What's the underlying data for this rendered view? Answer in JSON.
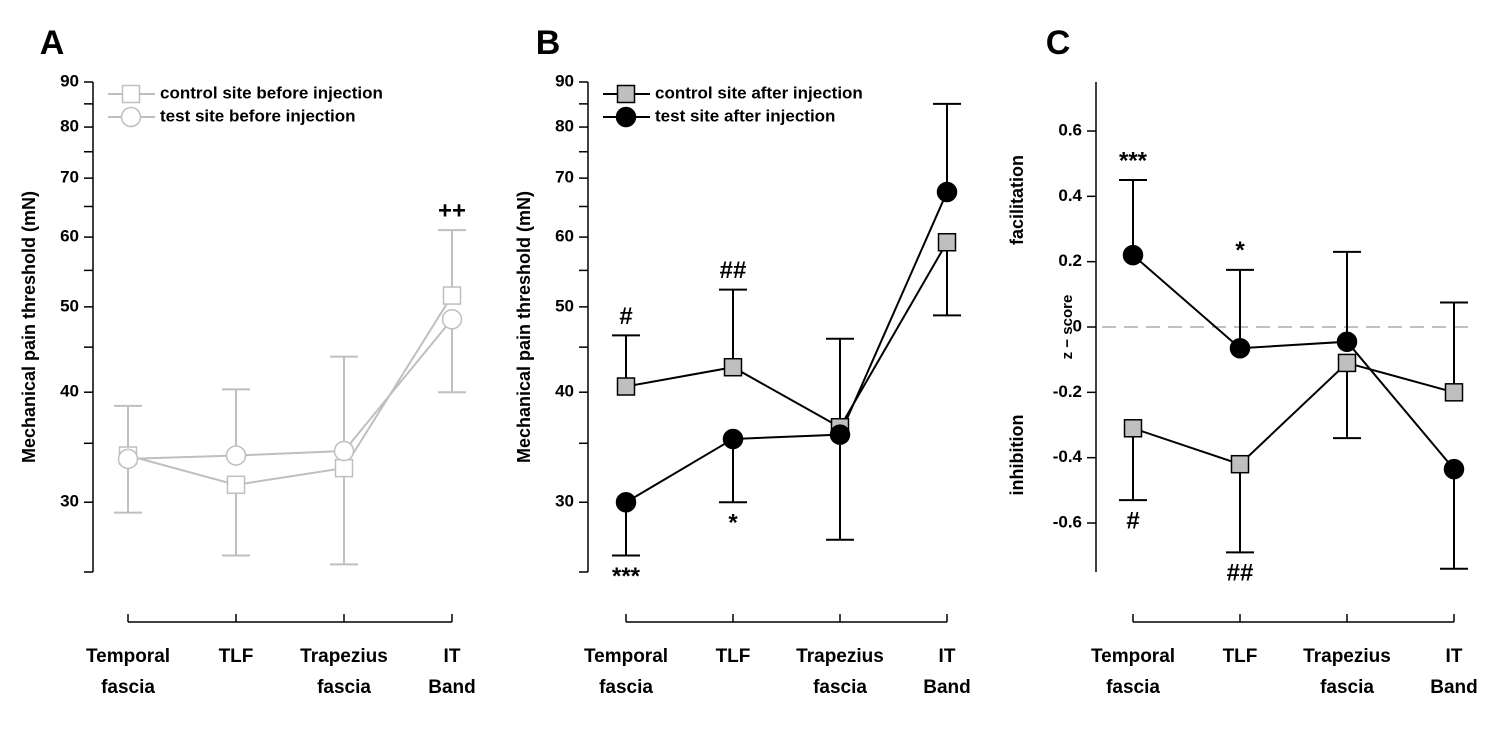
{
  "chart_data": [
    {
      "type": "line",
      "panel_label": "A",
      "ylabel": "Mechanical pain threshold (mN)",
      "log": true,
      "categories": [
        [
          "Temporal",
          "fascia"
        ],
        [
          "TLF"
        ],
        [
          "Trapezius",
          "fascia"
        ],
        [
          "IT",
          "Band"
        ]
      ],
      "series": [
        {
          "name": "control site before injection",
          "marker": "square",
          "color": "#bfbfbf",
          "fill": "#ffffff",
          "values": [
            33.9,
            31.4,
            32.8,
            51.5
          ]
        },
        {
          "name": "test site before injection",
          "marker": "circle",
          "color": "#bfbfbf",
          "fill": "#ffffff",
          "values": [
            33.6,
            33.9,
            34.3,
            48.4
          ]
        }
      ],
      "error_upper": [
        38.6,
        40.3,
        43.9,
        61.1
      ],
      "error_lower": [
        29.2,
        26.1,
        25.5,
        40.0
      ],
      "error_color": "#bfbfbf",
      "ylim": [
        25,
        90
      ],
      "yticks": [
        30,
        40,
        50,
        60,
        70,
        80,
        90
      ],
      "yminor": [
        25,
        35,
        45,
        55,
        65,
        75,
        85
      ],
      "annotations": [
        {
          "text": "++",
          "category": 3,
          "side": "above"
        }
      ]
    },
    {
      "type": "line",
      "panel_label": "B",
      "ylabel": "Mechanical pain threshold (mN)",
      "log": true,
      "categories": [
        [
          "Temporal",
          "fascia"
        ],
        [
          "TLF"
        ],
        [
          "Trapezius",
          "fascia"
        ],
        [
          "IT",
          "Band"
        ]
      ],
      "series": [
        {
          "name": "control site after injection",
          "marker": "square",
          "color": "#000000",
          "fill": "#bfbfbf",
          "values": [
            40.6,
            42.7,
            36.5,
            59.2
          ]
        },
        {
          "name": "test site after injection",
          "marker": "circle",
          "color": "#000000",
          "fill": "#000000",
          "values": [
            30.0,
            35.4,
            35.8,
            67.5
          ]
        }
      ],
      "error_upper": [
        46.4,
        52.3,
        46.0,
        85.0
      ],
      "error_lower": [
        26.1,
        30.0,
        27.2,
        48.9
      ],
      "error_color": "#000000",
      "ylim": [
        25,
        90
      ],
      "yticks": [
        30,
        40,
        50,
        60,
        70,
        80,
        90
      ],
      "yminor": [
        25,
        35,
        45,
        55,
        65,
        75,
        85
      ],
      "annotations": [
        {
          "text": "#",
          "category": 0,
          "side": "above"
        },
        {
          "text": "***",
          "category": 0,
          "side": "below"
        },
        {
          "text": "##",
          "category": 1,
          "side": "above"
        },
        {
          "text": "*",
          "category": 1,
          "side": "below"
        }
      ]
    },
    {
      "type": "line",
      "panel_label": "C",
      "ylabel": "z − score",
      "ylabel_upper": "facilitation",
      "ylabel_lower": "inhibition",
      "log": false,
      "categories": [
        [
          "Temporal",
          "fascia"
        ],
        [
          "TLF"
        ],
        [
          "Trapezius",
          "fascia"
        ],
        [
          "IT",
          "Band"
        ]
      ],
      "series": [
        {
          "marker": "square",
          "color": "#000000",
          "fill": "#bfbfbf",
          "values": [
            -0.31,
            -0.42,
            -0.11,
            -0.2
          ]
        },
        {
          "marker": "circle",
          "color": "#000000",
          "fill": "#000000",
          "values": [
            0.22,
            -0.065,
            -0.045,
            -0.435
          ]
        }
      ],
      "error_upper": [
        0.45,
        0.175,
        0.23,
        0.075
      ],
      "error_lower": [
        -0.53,
        -0.69,
        -0.34,
        -0.74
      ],
      "error_color": "#000000",
      "ylim": [
        -0.75,
        0.75
      ],
      "yticks": [
        -0.6,
        -0.4,
        -0.2,
        0,
        0.2,
        0.4,
        0.6
      ],
      "hline": 0,
      "hline_color": "#bfbfbf",
      "annotations": [
        {
          "text": "***",
          "category": 0,
          "side": "above"
        },
        {
          "text": "#",
          "category": 0,
          "side": "below"
        },
        {
          "text": "*",
          "category": 1,
          "side": "above"
        },
        {
          "text": "##",
          "category": 1,
          "side": "below"
        }
      ]
    }
  ]
}
